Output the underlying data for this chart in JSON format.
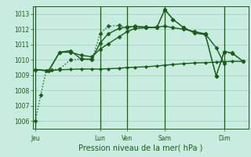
{
  "bg_color": "#c8ede0",
  "grid_color": "#a0d4c0",
  "line_color": "#1a5c1a",
  "title": "Pression niveau de la mer( hPa )",
  "ylim": [
    1005.5,
    1013.5
  ],
  "yticks": [
    1006,
    1007,
    1008,
    1009,
    1010,
    1011,
    1012,
    1013
  ],
  "day_labels": [
    "Jeu",
    "Lun",
    "Ven",
    "Sam",
    "Dim"
  ],
  "day_x": [
    0.5,
    12.5,
    17.5,
    24.5,
    35.5
  ],
  "vline_x": [
    0.5,
    12.5,
    17.5,
    24.5,
    35.5
  ],
  "xlim": [
    0,
    40
  ],
  "series": [
    {
      "name": "dotted_low",
      "style": "dotted",
      "marker": "D",
      "markersize": 2.5,
      "lw": 1.0,
      "x": [
        0.5,
        1.5,
        2.5,
        3.5,
        5,
        7,
        9,
        11,
        12.5,
        14,
        16,
        17.5,
        19,
        21,
        23,
        24.5,
        26,
        28,
        30,
        32,
        34,
        35.5,
        37,
        39
      ],
      "y": [
        1006.0,
        1007.7,
        1009.3,
        1009.35,
        1009.4,
        1010.0,
        1010.05,
        1010.0,
        1011.7,
        1012.2,
        1012.25,
        1012.1,
        1012.15,
        1012.1,
        1012.1,
        1013.25,
        1012.65,
        1012.1,
        1011.8,
        1011.7,
        1008.95,
        1010.5,
        1010.4,
        1009.9
      ]
    },
    {
      "name": "flat_line",
      "style": "solid",
      "marker": "D",
      "markersize": 2.0,
      "lw": 1.0,
      "x": [
        0.5,
        3,
        5,
        7,
        9,
        11,
        12.5,
        14,
        16,
        17.5,
        19,
        21,
        23,
        24.5,
        26,
        28,
        30,
        32,
        34,
        35.5,
        37,
        39
      ],
      "y": [
        1009.35,
        1009.3,
        1009.35,
        1009.38,
        1009.4,
        1009.4,
        1009.4,
        1009.42,
        1009.45,
        1009.5,
        1009.52,
        1009.55,
        1009.6,
        1009.65,
        1009.7,
        1009.75,
        1009.8,
        1009.82,
        1009.85,
        1009.88,
        1009.9,
        1009.9
      ]
    },
    {
      "name": "upper_line",
      "style": "solid",
      "marker": "D",
      "markersize": 2.5,
      "lw": 1.0,
      "x": [
        0.5,
        3,
        5,
        7,
        9,
        11,
        12.5,
        14,
        16,
        17.5,
        19,
        21,
        23,
        24.5,
        26,
        28,
        30,
        32,
        34,
        35.5,
        37,
        39
      ],
      "y": [
        1009.35,
        1009.3,
        1010.5,
        1010.6,
        1010.05,
        1010.05,
        1011.1,
        1011.7,
        1012.05,
        1012.15,
        1012.2,
        1012.15,
        1012.1,
        1013.3,
        1012.65,
        1012.1,
        1011.75,
        1011.65,
        1008.95,
        1010.55,
        1010.45,
        1009.9
      ]
    },
    {
      "name": "middle_rise",
      "style": "solid",
      "marker": "D",
      "markersize": 2.5,
      "lw": 1.0,
      "x": [
        0.5,
        3,
        5,
        7,
        9,
        11,
        12.5,
        14,
        16,
        17.5,
        19,
        21,
        23,
        24.5,
        26,
        28,
        30,
        32,
        34,
        35.5
      ],
      "y": [
        1009.35,
        1009.3,
        1010.5,
        1010.5,
        1010.3,
        1010.2,
        1010.7,
        1011.05,
        1011.5,
        1011.85,
        1012.05,
        1012.1,
        1012.15,
        1012.2,
        1012.1,
        1012.0,
        1011.85,
        1011.7,
        1010.8,
        1009.75
      ]
    }
  ]
}
